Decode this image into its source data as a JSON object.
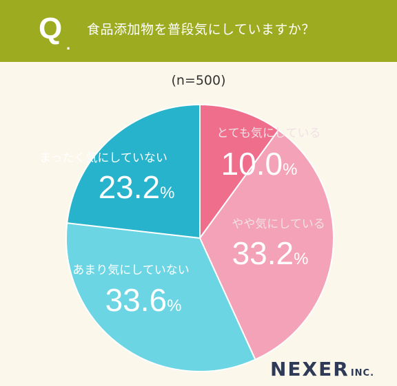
{
  "header": {
    "q_letter": "Q",
    "q_dot": ".",
    "question": "食品添加物を普段気にしていますか？"
  },
  "sample_size": "(n=500)",
  "colors": {
    "banner": "#9cab1f",
    "background": "#fbf7eb",
    "label_text": "#ffffff",
    "pink_label": "#f0e0e6"
  },
  "logo": {
    "main": "NEXER",
    "sub": "INC."
  },
  "chart_data": {
    "type": "pie",
    "unit": "%",
    "series": [
      {
        "label": "とても気にしている",
        "value": 10.0,
        "value_text": "10.0",
        "color": "#ef6e8c"
      },
      {
        "label": "やや気にしている",
        "value": 33.2,
        "value_text": "33.2",
        "color": "#f4a2b7"
      },
      {
        "label": "あまり気にしていない",
        "value": 33.6,
        "value_text": "33.6",
        "color": "#6cd5e3"
      },
      {
        "label": "まったく気にしていない",
        "value": 23.2,
        "value_text": "23.2",
        "color": "#27b3cb"
      }
    ]
  }
}
